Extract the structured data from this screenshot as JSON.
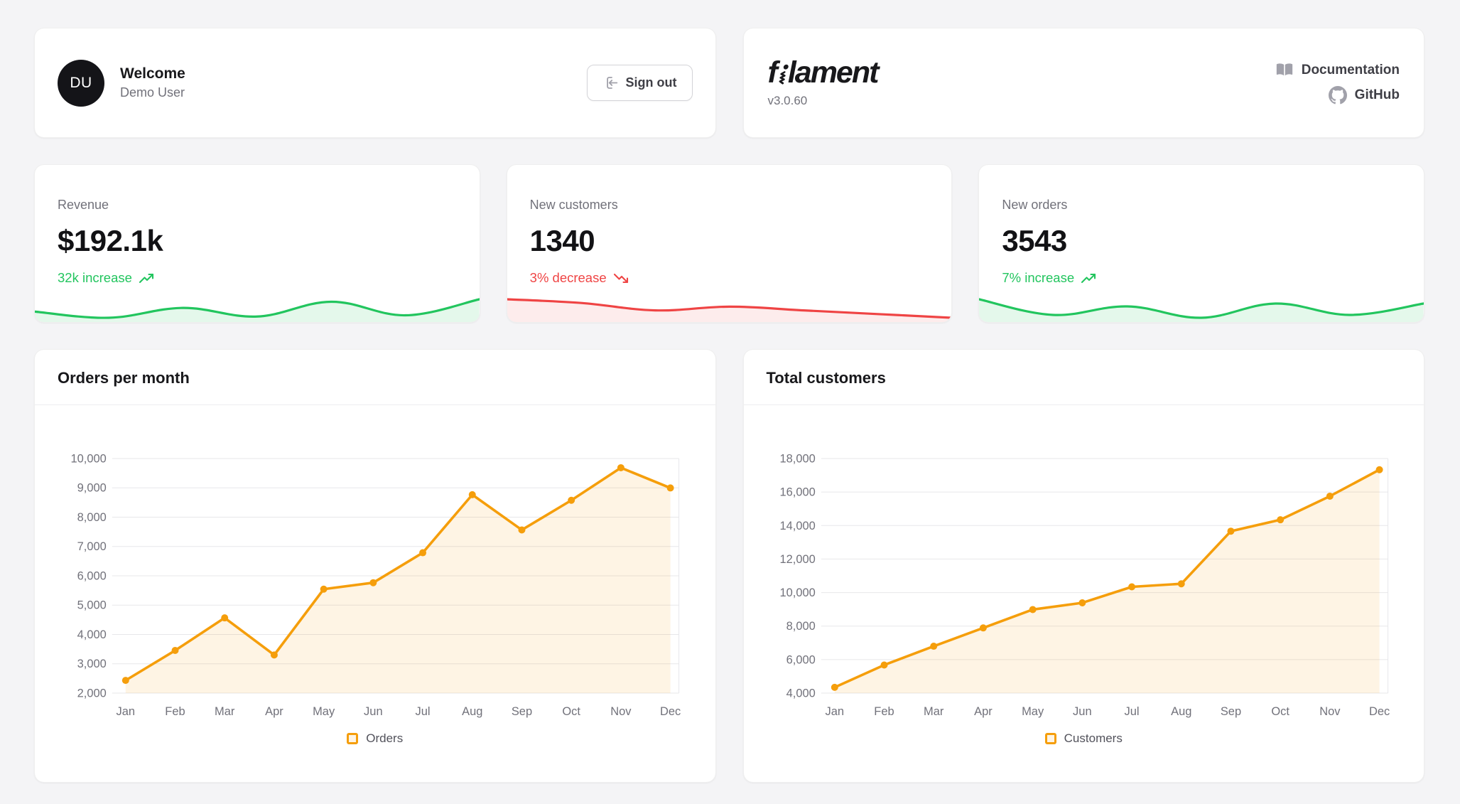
{
  "welcome_card": {
    "avatar_initials": "DU",
    "title": "Welcome",
    "subtitle": "Demo User",
    "sign_out_label": "Sign out"
  },
  "brand_card": {
    "logo_text": "filament",
    "version": "v3.0.60",
    "links": [
      {
        "label": "Documentation",
        "icon": "book-icon"
      },
      {
        "label": "GitHub",
        "icon": "github-icon"
      }
    ]
  },
  "stats": [
    {
      "label": "Revenue",
      "value": "$192.1k",
      "delta": "32k increase",
      "direction": "up",
      "color": "#22c55e",
      "fill": "rgba(34,197,94,0.12)",
      "sparkline": [
        7,
        2,
        10,
        3,
        15,
        4,
        17
      ]
    },
    {
      "label": "New customers",
      "value": "1340",
      "delta": "3% decrease",
      "direction": "down",
      "color": "#ef4444",
      "fill": "rgba(239,68,68,0.10)",
      "sparkline": [
        17,
        16,
        14,
        15,
        14,
        13,
        12
      ]
    },
    {
      "label": "New orders",
      "value": "3543",
      "delta": "7% increase",
      "direction": "up",
      "color": "#22c55e",
      "fill": "rgba(34,197,94,0.12)",
      "sparkline": [
        15,
        4,
        10,
        2,
        12,
        4,
        12
      ]
    }
  ],
  "chart_data": [
    {
      "type": "line",
      "title": "Orders per month",
      "legend": "Orders",
      "legend_position": "bottom",
      "grid": true,
      "categories": [
        "Jan",
        "Feb",
        "Mar",
        "Apr",
        "May",
        "Jun",
        "Jul",
        "Aug",
        "Sep",
        "Oct",
        "Nov",
        "Dec"
      ],
      "values": [
        2433,
        3454,
        4566,
        3300,
        5545,
        5765,
        6787,
        8767,
        7565,
        8576,
        9686,
        8996
      ],
      "ylabel": "",
      "xlabel": "",
      "ylim": [
        2000,
        10000
      ],
      "ystep": 1000,
      "line_color": "#f59e0b",
      "fill_color": "rgba(245,158,11,0.11)"
    },
    {
      "type": "line",
      "title": "Total customers",
      "legend": "Customers",
      "legend_position": "bottom",
      "grid": true,
      "categories": [
        "Jan",
        "Feb",
        "Mar",
        "Apr",
        "May",
        "Jun",
        "Jul",
        "Aug",
        "Sep",
        "Oct",
        "Nov",
        "Dec"
      ],
      "values": [
        4344,
        5676,
        6798,
        7890,
        8987,
        9388,
        10343,
        10524,
        13664,
        14345,
        15753,
        17332
      ],
      "ylabel": "",
      "xlabel": "",
      "ylim": [
        4000,
        18000
      ],
      "ystep": 2000,
      "line_color": "#f59e0b",
      "fill_color": "rgba(245,158,11,0.11)"
    }
  ]
}
